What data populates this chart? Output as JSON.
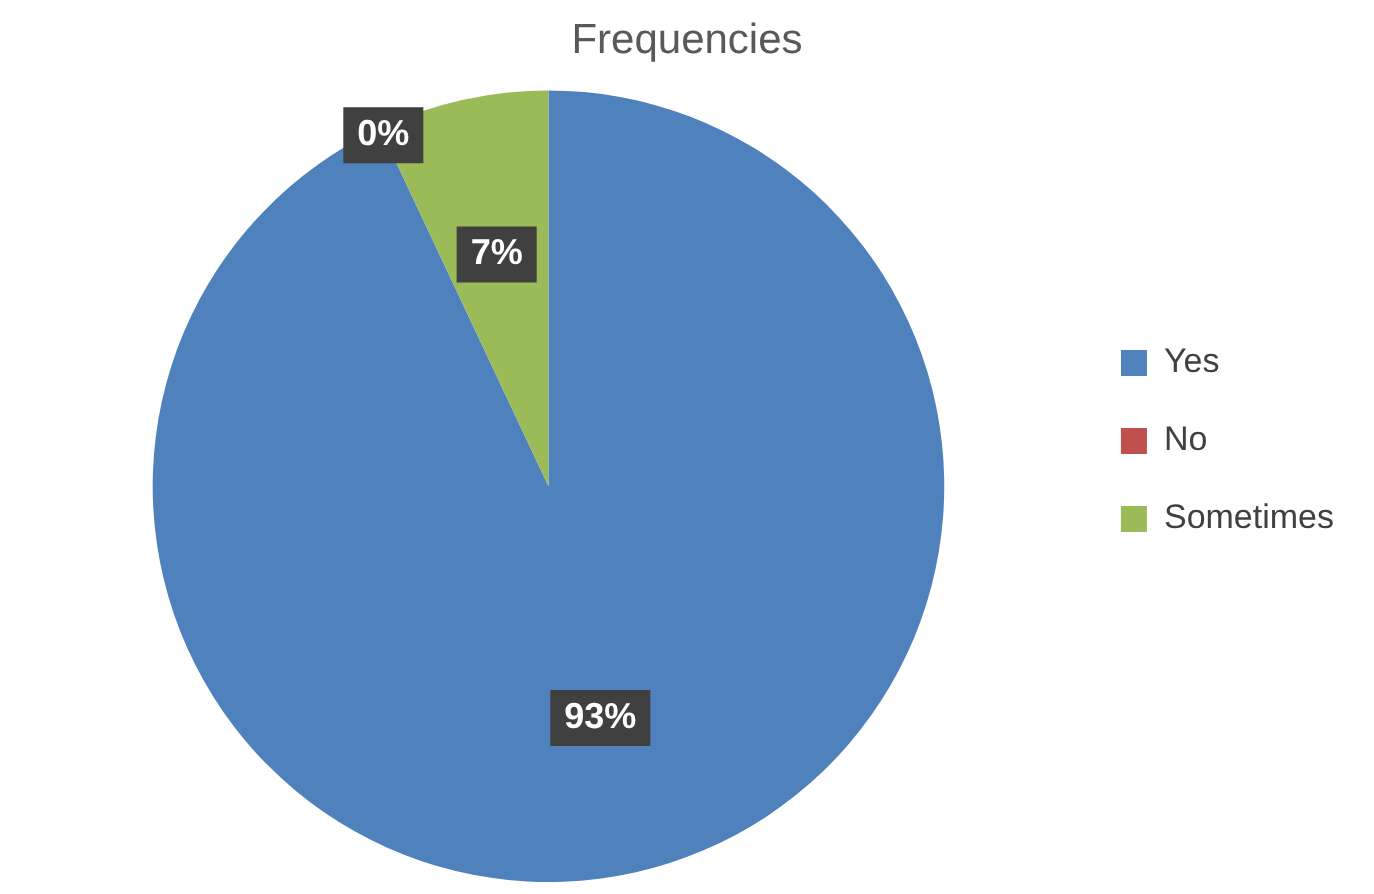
{
  "chart_data": {
    "type": "pie",
    "title": "Frequencies",
    "categories": [
      "Yes",
      "No",
      "Sometimes"
    ],
    "values": [
      93,
      0,
      7
    ],
    "colors": [
      "#4f81bd",
      "#c0504d",
      "#9bbb59"
    ],
    "value_labels": [
      "93%",
      "0%",
      "7%"
    ],
    "legend": "right"
  }
}
